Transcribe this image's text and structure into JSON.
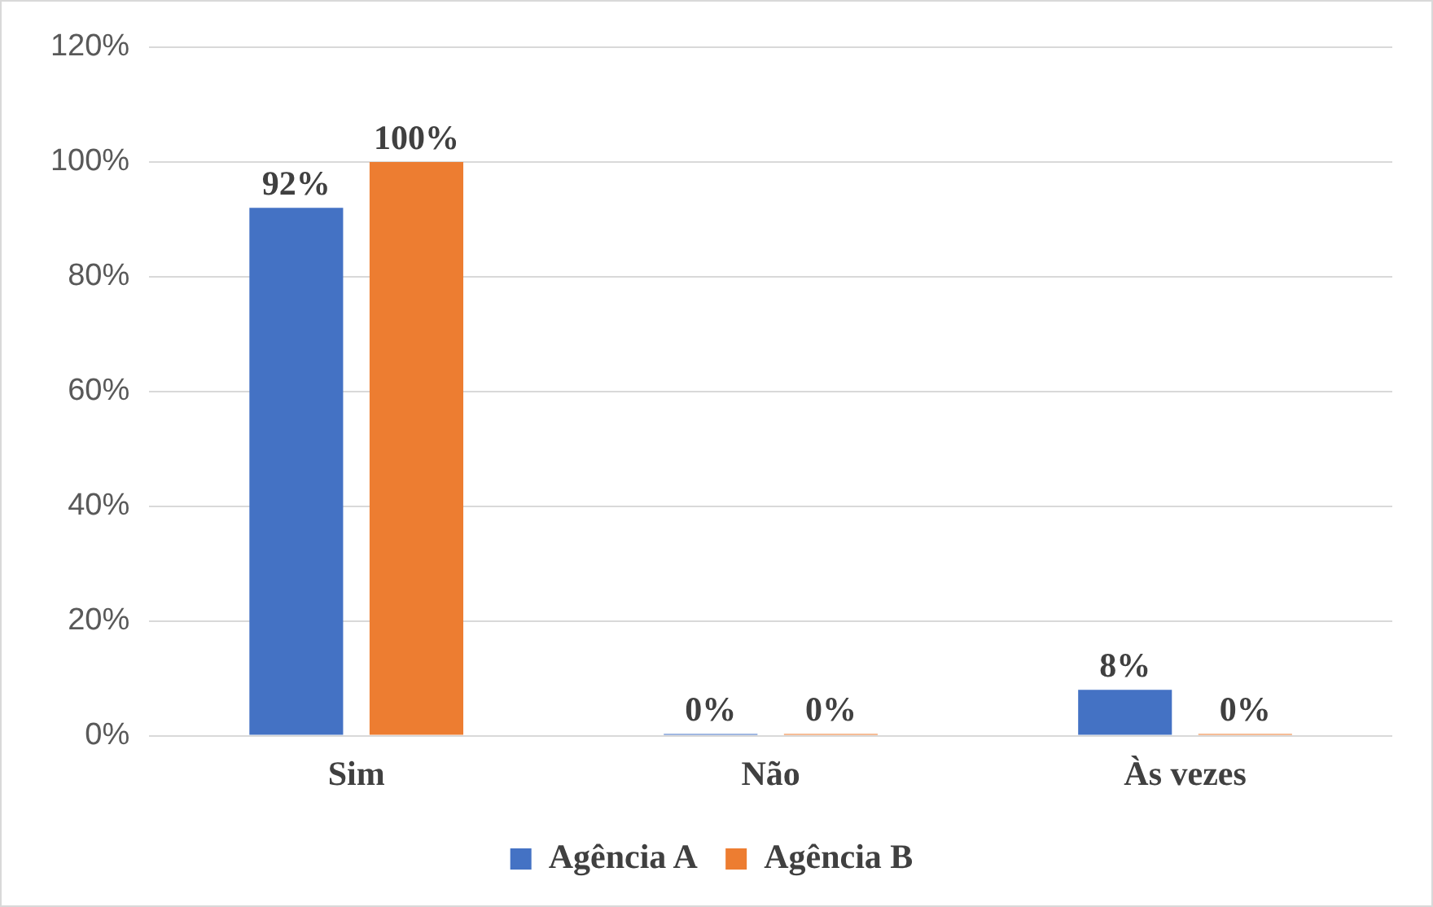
{
  "chart_data": {
    "type": "bar",
    "categories": [
      "Sim",
      "Não",
      "Às vezes"
    ],
    "series": [
      {
        "name": "Agência A",
        "color": "#4472c4",
        "values": [
          92,
          0,
          8
        ],
        "value_labels": [
          "92%",
          "0%",
          "8%"
        ]
      },
      {
        "name": "Agência B",
        "color": "#ed7d31",
        "values": [
          100,
          0,
          0
        ],
        "value_labels": [
          "100%",
          "0%",
          "0%"
        ]
      }
    ],
    "ylim": [
      0,
      120
    ],
    "yticks": [
      {
        "value": 0,
        "label": "0%"
      },
      {
        "value": 20,
        "label": "20%"
      },
      {
        "value": 40,
        "label": "40%"
      },
      {
        "value": 60,
        "label": "60%"
      },
      {
        "value": 80,
        "label": "80%"
      },
      {
        "value": 100,
        "label": "100%"
      },
      {
        "value": 120,
        "label": "120%"
      }
    ],
    "grid": "y",
    "legend": "bottom"
  }
}
